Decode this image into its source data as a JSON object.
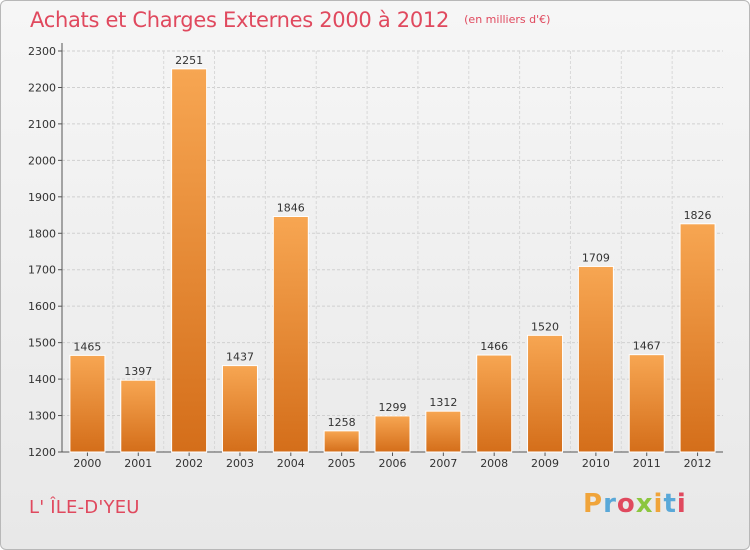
{
  "header": {
    "title": "Achats et Charges Externes 2000 à 2012",
    "subtitle": "(en milliers d'€)"
  },
  "footer": {
    "location": "L' ÎLE-D'YEU",
    "brand": "Proxiti"
  },
  "colors": {
    "bar_light": "#f7a652",
    "bar_dark": "#d46e1a",
    "title": "#e0495e"
  },
  "chart_data": {
    "type": "bar",
    "title": "Achats et Charges Externes 2000 à 2012",
    "subtitle": "(en milliers d'€)",
    "xlabel": "",
    "ylabel": "",
    "categories": [
      "2000",
      "2001",
      "2002",
      "2003",
      "2004",
      "2005",
      "2006",
      "2007",
      "2008",
      "2009",
      "2010",
      "2011",
      "2012"
    ],
    "values": [
      1465,
      1397,
      2251,
      1437,
      1846,
      1258,
      1299,
      1312,
      1466,
      1520,
      1709,
      1467,
      1826
    ],
    "ylim": [
      1200,
      2300
    ],
    "yticks": [
      1200,
      1300,
      1400,
      1500,
      1600,
      1700,
      1800,
      1900,
      2000,
      2100,
      2200,
      2300
    ],
    "grid": true,
    "legend": "none"
  }
}
